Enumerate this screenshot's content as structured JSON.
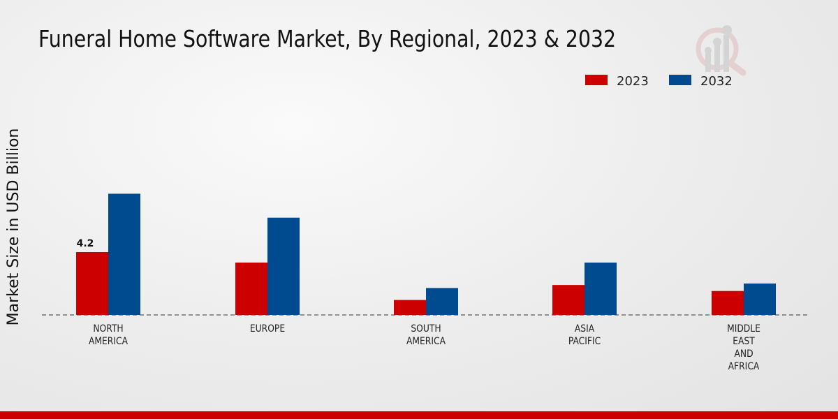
{
  "chart_data": {
    "type": "bar",
    "title": "Funeral Home Software Market, By Regional, 2023 & 2032",
    "xlabel": "",
    "ylabel": "Market Size in USD Billion",
    "categories": [
      [
        "NORTH",
        "AMERICA"
      ],
      [
        "EUROPE"
      ],
      [
        "SOUTH",
        "AMERICA"
      ],
      [
        "ASIA",
        "PACIFIC"
      ],
      [
        "MIDDLE",
        "EAST",
        "AND",
        "AFRICA"
      ]
    ],
    "series": [
      {
        "name": "2023",
        "color": "#cc0000",
        "values": [
          4.2,
          3.5,
          1.0,
          2.0,
          1.6
        ]
      },
      {
        "name": "2032",
        "color": "#004a8f",
        "values": [
          8.1,
          6.5,
          1.8,
          3.5,
          2.1
        ]
      }
    ],
    "data_labels": [
      {
        "series": 0,
        "index": 0,
        "text": "4.2"
      }
    ],
    "ylim": [
      0,
      10
    ],
    "grid": false,
    "legend": "top-right"
  }
}
